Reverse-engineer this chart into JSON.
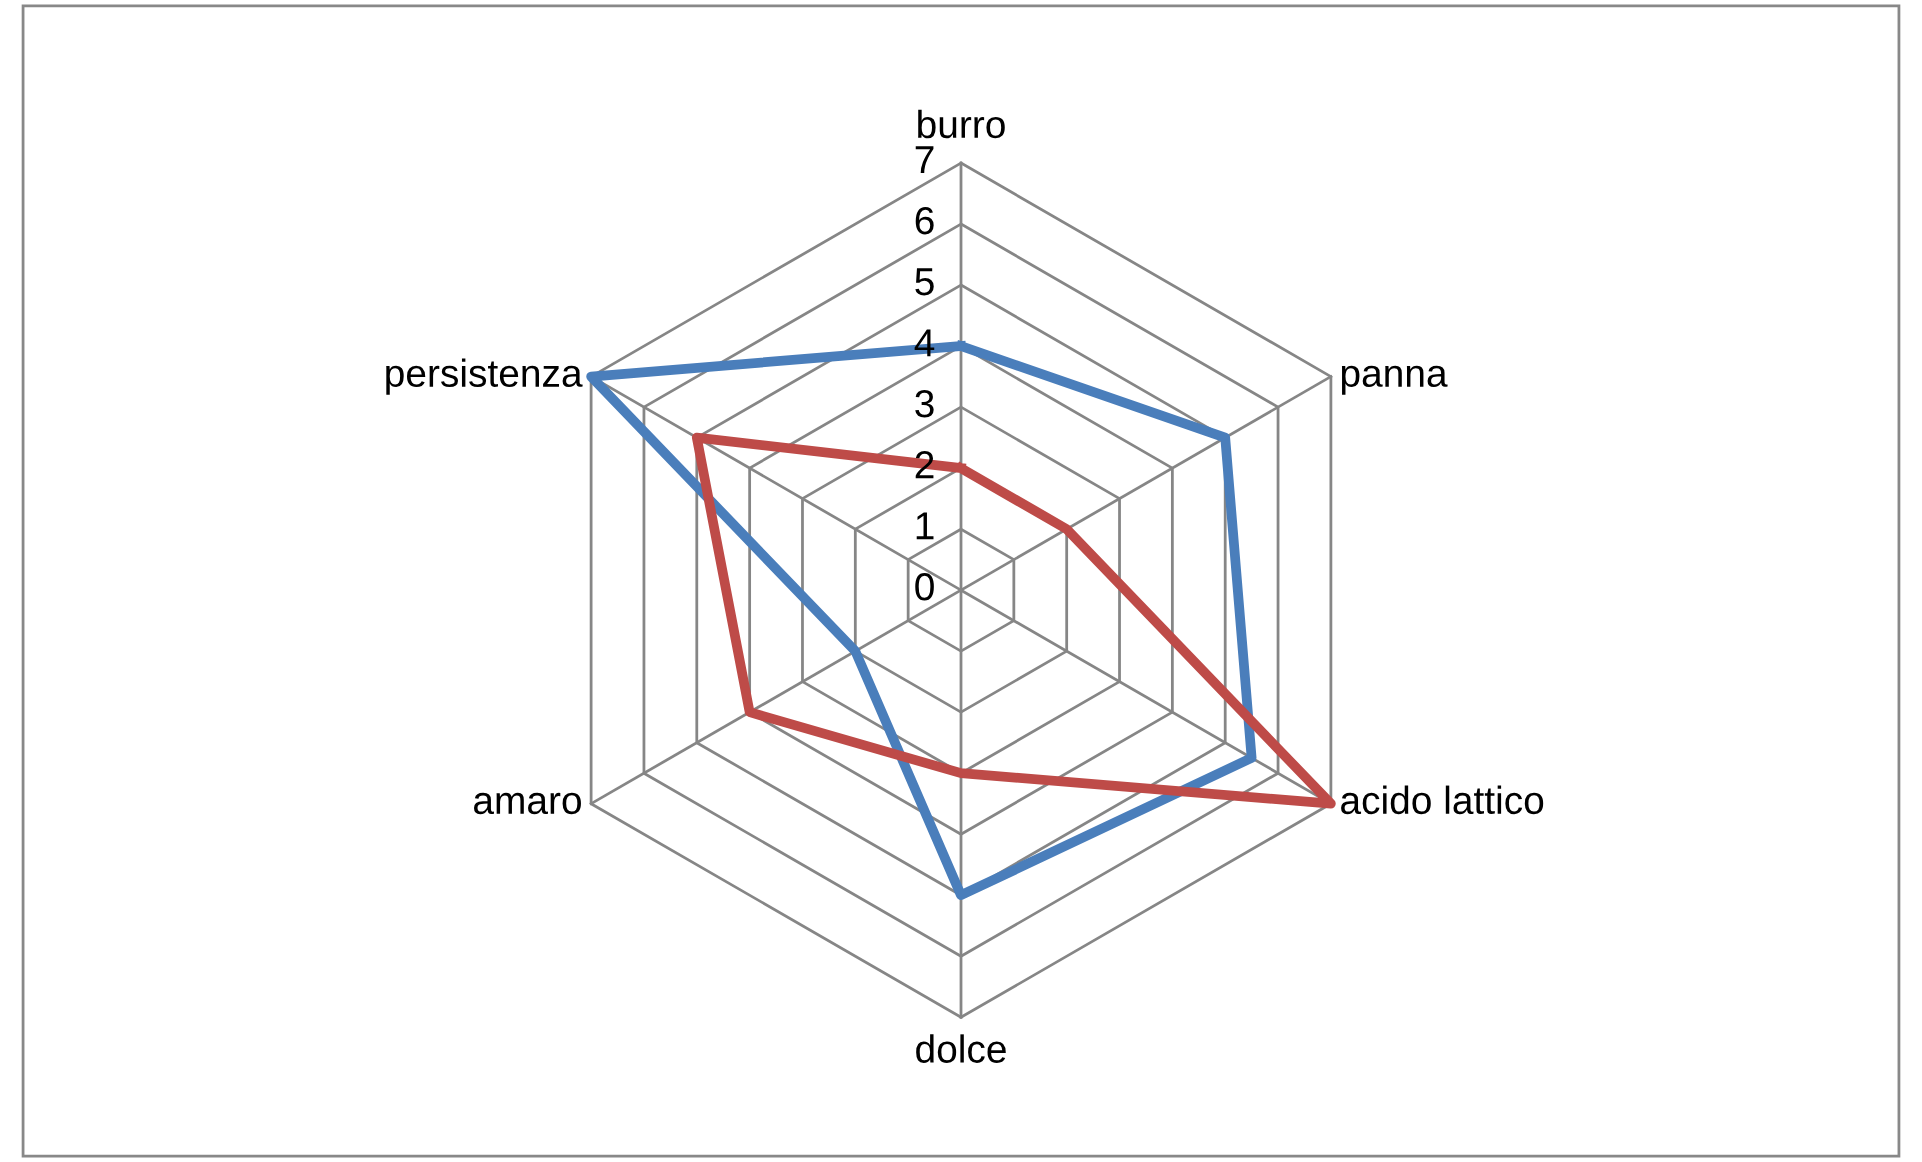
{
  "chart_data": {
    "type": "radar",
    "categories": [
      "burro",
      "panna",
      "acido lattico",
      "dolce",
      "amaro",
      "persistenza"
    ],
    "series": [
      {
        "color": "#4a7ebb",
        "values": [
          4,
          5,
          5.5,
          5,
          2,
          7
        ]
      },
      {
        "color": "#be4b48",
        "values": [
          2,
          2,
          7,
          3,
          4,
          5
        ]
      }
    ],
    "ylim": [
      0,
      7
    ],
    "yticks": [
      0,
      1,
      2,
      3,
      4,
      5,
      6,
      7
    ],
    "grid": true
  }
}
